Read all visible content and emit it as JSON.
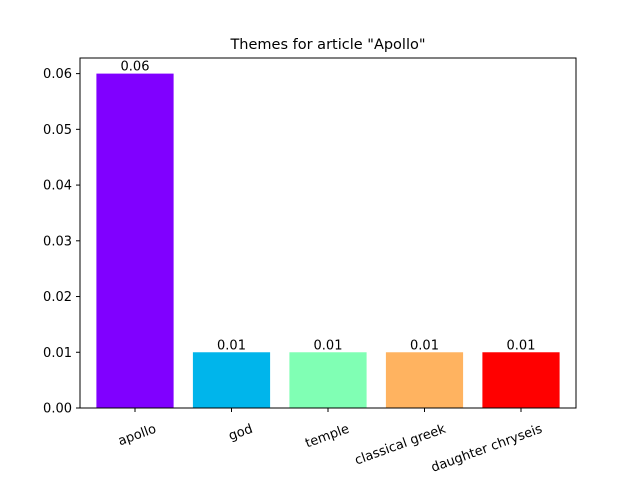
{
  "chart_data": {
    "type": "bar",
    "title": "Themes for article \"Apollo\"",
    "xlabel": "",
    "ylabel": "",
    "categories": [
      "apollo",
      "god",
      "temple",
      "classical greek",
      "daughter chryseis"
    ],
    "values": [
      0.06,
      0.01,
      0.01,
      0.01,
      0.01
    ],
    "value_labels": [
      "0.06",
      "0.01",
      "0.01",
      "0.01",
      "0.01"
    ],
    "bar_colors": [
      "#8000ff",
      "#00b5eb",
      "#80ffb4",
      "#ffb360",
      "#ff0000"
    ],
    "ylim": [
      0,
      0.0628
    ],
    "yticks": [
      0.0,
      0.01,
      0.02,
      0.03,
      0.04,
      0.05,
      0.06
    ],
    "ytick_labels": [
      "0.00",
      "0.01",
      "0.02",
      "0.03",
      "0.04",
      "0.05",
      "0.06"
    ],
    "x_tick_rotation_deg": 20,
    "grid": false,
    "legend": "none"
  }
}
